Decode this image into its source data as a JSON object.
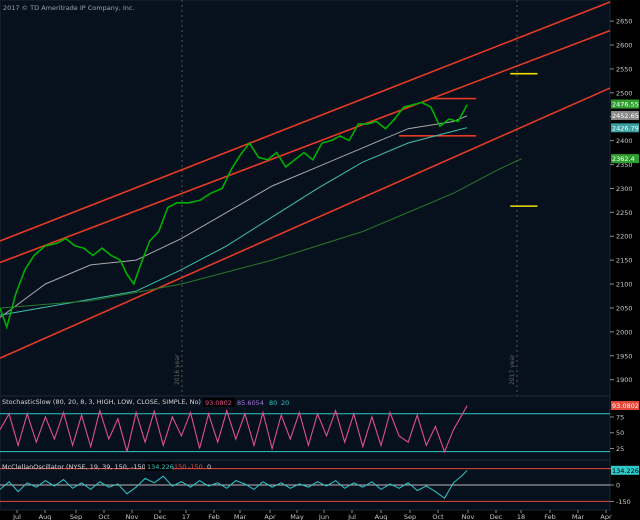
{
  "copyright": "2017 © TD Ameritrade IP Company, Inc.",
  "chart_data": [
    {
      "type": "line",
      "ylim": [
        1870,
        2690
      ],
      "yticks": [
        1900,
        1950,
        2000,
        2050,
        2100,
        2150,
        2200,
        2250,
        2300,
        2350,
        2400,
        2450,
        2500,
        2550,
        2600,
        2650
      ],
      "x_labels": [
        "Jul",
        "Aug",
        "Sep",
        "Oct",
        "Nov",
        "Dec",
        "17",
        "Feb",
        "Mar",
        "Apr",
        "May",
        "Jun",
        "Jul",
        "Aug",
        "Sep",
        "Oct",
        "Nov",
        "Dec",
        "18",
        "Feb",
        "Mar",
        "Apr"
      ],
      "year_markers": [
        "2016 year",
        "2017 year"
      ],
      "price_labels": [
        {
          "value": "2476.55",
          "color": "#2e9e2e"
        },
        {
          "value": "2452.65",
          "color": "#888888"
        },
        {
          "value": "2426.79",
          "color": "#3aa0a0"
        },
        {
          "value": "2362.4",
          "color": "#2e9e2e"
        }
      ],
      "series": [
        {
          "color": "#00b000",
          "values": [
            [
              0,
              2050
            ],
            [
              3,
              2010
            ],
            [
              7,
              2080
            ],
            [
              11,
              2130
            ],
            [
              15,
              2160
            ],
            [
              20,
              2180
            ],
            [
              25,
              2185
            ],
            [
              29,
              2195
            ],
            [
              33,
              2180
            ],
            [
              37,
              2175
            ],
            [
              41,
              2160
            ],
            [
              45,
              2175
            ],
            [
              49,
              2160
            ],
            [
              53,
              2150
            ],
            [
              56,
              2120
            ],
            [
              59,
              2100
            ],
            [
              62,
              2140
            ],
            [
              66,
              2190
            ],
            [
              70,
              2210
            ],
            [
              74,
              2260
            ],
            [
              78,
              2270
            ],
            [
              83,
              2270
            ],
            [
              88,
              2275
            ],
            [
              93,
              2290
            ],
            [
              98,
              2300
            ],
            [
              102,
              2340
            ],
            [
              106,
              2370
            ],
            [
              110,
              2395
            ],
            [
              114,
              2365
            ],
            [
              118,
              2360
            ],
            [
              122,
              2375
            ],
            [
              126,
              2345
            ],
            [
              130,
              2360
            ],
            [
              134,
              2375
            ],
            [
              138,
              2360
            ],
            [
              142,
              2395
            ],
            [
              146,
              2400
            ],
            [
              150,
              2410
            ],
            [
              154,
              2400
            ],
            [
              158,
              2435
            ],
            [
              162,
              2435
            ],
            [
              166,
              2440
            ],
            [
              170,
              2425
            ],
            [
              174,
              2445
            ],
            [
              178,
              2470
            ],
            [
              182,
              2475
            ],
            [
              186,
              2480
            ],
            [
              190,
              2470
            ],
            [
              194,
              2430
            ],
            [
              198,
              2445
            ],
            [
              202,
              2440
            ],
            [
              206,
              2475
            ]
          ]
        },
        {
          "color": "#a8a8a8",
          "values": [
            [
              0,
              2030
            ],
            [
              20,
              2100
            ],
            [
              40,
              2140
            ],
            [
              60,
              2150
            ],
            [
              80,
              2195
            ],
            [
              100,
              2250
            ],
            [
              120,
              2305
            ],
            [
              140,
              2345
            ],
            [
              160,
              2385
            ],
            [
              180,
              2425
            ],
            [
              200,
              2440
            ],
            [
              206,
              2452
            ]
          ]
        },
        {
          "color": "#40c0b0",
          "values": [
            [
              0,
              2035
            ],
            [
              30,
              2060
            ],
            [
              60,
              2085
            ],
            [
              80,
              2130
            ],
            [
              100,
              2180
            ],
            [
              120,
              2240
            ],
            [
              140,
              2300
            ],
            [
              160,
              2355
            ],
            [
              180,
              2395
            ],
            [
              200,
              2420
            ],
            [
              206,
              2427
            ]
          ]
        },
        {
          "color": "#2a7a2a",
          "values": [
            [
              0,
              2050
            ],
            [
              40,
              2065
            ],
            [
              80,
              2100
            ],
            [
              120,
              2150
            ],
            [
              160,
              2210
            ],
            [
              200,
              2290
            ],
            [
              220,
              2340
            ],
            [
              230,
              2362
            ]
          ]
        }
      ],
      "channel": {
        "color": "#e53b25",
        "lines": [
          [
            [
              0,
              2190
            ],
            [
              269,
              2690
            ]
          ],
          [
            [
              0,
              2145
            ],
            [
              269,
              2630
            ]
          ],
          [
            [
              0,
              1945
            ],
            [
              269,
              2510
            ]
          ]
        ]
      },
      "horizontals": [
        {
          "color": "#e53b25",
          "x": [
            190,
            210
          ],
          "y": 2488
        },
        {
          "color": "#e53b25",
          "x": [
            176,
            210
          ],
          "y": 2410
        },
        {
          "color": "#f2e000",
          "x": [
            225,
            237
          ],
          "y": 2540
        },
        {
          "color": "#f2e000",
          "x": [
            225,
            237
          ],
          "y": 2263
        }
      ]
    },
    {
      "type": "line",
      "title": "StochasticSlow (80, 20, 8, 3, HIGH, LOW, CLOSE, SIMPLE, No)",
      "readouts": [
        "93.0802",
        "85.6054",
        "80",
        "20"
      ],
      "ylim": [
        10,
        105
      ],
      "yticks": [
        25,
        50,
        75
      ],
      "levels": [
        80,
        20
      ],
      "value_label": "93.0802",
      "series": [
        {
          "color": "#e0508a",
          "values": [
            [
              0,
              55
            ],
            [
              4,
              80
            ],
            [
              8,
              30
            ],
            [
              12,
              80
            ],
            [
              16,
              35
            ],
            [
              20,
              75
            ],
            [
              24,
              40
            ],
            [
              28,
              82
            ],
            [
              32,
              30
            ],
            [
              36,
              78
            ],
            [
              40,
              28
            ],
            [
              44,
              85
            ],
            [
              48,
              40
            ],
            [
              52,
              72
            ],
            [
              56,
              20
            ],
            [
              60,
              82
            ],
            [
              64,
              35
            ],
            [
              68,
              84
            ],
            [
              72,
              30
            ],
            [
              76,
              75
            ],
            [
              80,
              45
            ],
            [
              84,
              82
            ],
            [
              88,
              25
            ],
            [
              92,
              80
            ],
            [
              96,
              35
            ],
            [
              100,
              85
            ],
            [
              104,
              40
            ],
            [
              108,
              80
            ],
            [
              112,
              30
            ],
            [
              116,
              82
            ],
            [
              120,
              25
            ],
            [
              124,
              78
            ],
            [
              128,
              40
            ],
            [
              132,
              82
            ],
            [
              136,
              30
            ],
            [
              140,
              80
            ],
            [
              144,
              45
            ],
            [
              148,
              85
            ],
            [
              152,
              35
            ],
            [
              156,
              80
            ],
            [
              160,
              28
            ],
            [
              164,
              75
            ],
            [
              168,
              30
            ],
            [
              172,
              82
            ],
            [
              176,
              45
            ],
            [
              180,
              35
            ],
            [
              184,
              78
            ],
            [
              188,
              30
            ],
            [
              192,
              60
            ],
            [
              196,
              20
            ],
            [
              200,
              55
            ],
            [
              204,
              80
            ],
            [
              206,
              93
            ]
          ]
        }
      ]
    },
    {
      "type": "line",
      "title": "McClellanOscillator (NYSE, 19, 39, 150, -150, No)",
      "readouts": [
        "134.226",
        "150",
        "-150",
        "0"
      ],
      "ylim": [
        -210,
        210
      ],
      "yticks": [
        -150,
        0,
        150
      ],
      "levels": [
        150,
        0,
        -150
      ],
      "value_label": "134.226",
      "series": [
        {
          "color": "#30c8c8",
          "values": [
            [
              0,
              -40
            ],
            [
              4,
              30
            ],
            [
              8,
              -60
            ],
            [
              12,
              20
            ],
            [
              16,
              -20
            ],
            [
              20,
              40
            ],
            [
              24,
              -10
            ],
            [
              28,
              50
            ],
            [
              32,
              -30
            ],
            [
              36,
              20
            ],
            [
              40,
              -40
            ],
            [
              44,
              30
            ],
            [
              48,
              -20
            ],
            [
              52,
              10
            ],
            [
              56,
              -80
            ],
            [
              60,
              -20
            ],
            [
              64,
              60
            ],
            [
              68,
              20
            ],
            [
              72,
              80
            ],
            [
              76,
              -10
            ],
            [
              80,
              30
            ],
            [
              84,
              -20
            ],
            [
              88,
              40
            ],
            [
              92,
              -10
            ],
            [
              96,
              20
            ],
            [
              100,
              -30
            ],
            [
              104,
              40
            ],
            [
              108,
              10
            ],
            [
              112,
              -40
            ],
            [
              116,
              30
            ],
            [
              120,
              -20
            ],
            [
              124,
              20
            ],
            [
              128,
              -30
            ],
            [
              132,
              10
            ],
            [
              136,
              -20
            ],
            [
              140,
              30
            ],
            [
              144,
              -10
            ],
            [
              148,
              40
            ],
            [
              152,
              -30
            ],
            [
              156,
              20
            ],
            [
              160,
              -20
            ],
            [
              164,
              30
            ],
            [
              168,
              -40
            ],
            [
              172,
              10
            ],
            [
              176,
              -30
            ],
            [
              180,
              20
            ],
            [
              184,
              -50
            ],
            [
              188,
              -10
            ],
            [
              192,
              -60
            ],
            [
              196,
              -120
            ],
            [
              200,
              20
            ],
            [
              204,
              90
            ],
            [
              206,
              134
            ]
          ]
        }
      ]
    }
  ]
}
